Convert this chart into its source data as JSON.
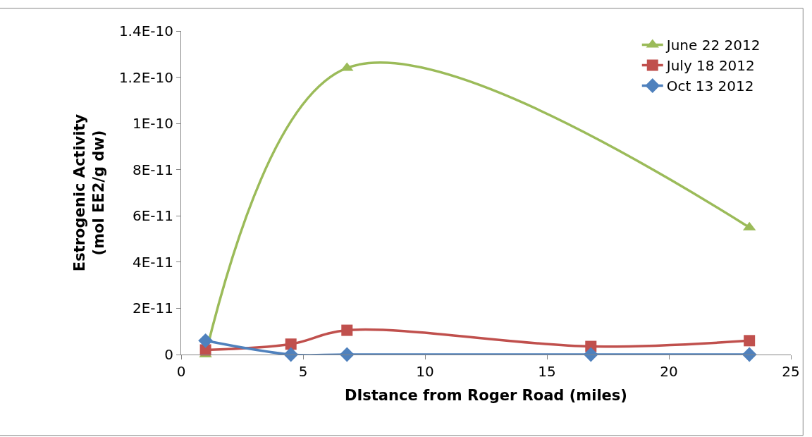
{
  "chart_data": {
    "type": "line",
    "xlabel": "DIstance from Roger Road (miles)",
    "ylabel": "Estrogenic Activity\n(mol EE2/g dw)",
    "xlim": [
      0,
      25
    ],
    "xticks": [
      0,
      5,
      10,
      15,
      20,
      25
    ],
    "ylim": [
      0,
      1.4e-10
    ],
    "yticks": [
      0,
      {
        "value": 2e-11,
        "label": "2E-11"
      },
      {
        "value": 4e-11,
        "label": "4E-11"
      },
      {
        "value": 6e-11,
        "label": "6E-11"
      },
      {
        "value": 8e-11,
        "label": "8E-11"
      },
      {
        "value": 1e-10,
        "label": "1E-10"
      },
      {
        "value": 1.2e-10,
        "label": "1.2E-10"
      },
      {
        "value": 1.4e-10,
        "label": "1.4E-10"
      }
    ],
    "legend": "top right",
    "series": [
      {
        "name": "June 22 2012",
        "color": "#9bbb59",
        "marker": "triangle",
        "x": [
          1,
          6.8,
          23.3
        ],
        "values": [
          0,
          1.24e-10,
          5.5e-11
        ]
      },
      {
        "name": "July 18 2012",
        "color": "#c0504d",
        "marker": "square",
        "x": [
          1,
          4.5,
          6.8,
          16.8,
          23.3
        ],
        "values": [
          2e-12,
          4.5e-12,
          1.05e-11,
          3.5e-12,
          6e-12
        ]
      },
      {
        "name": "Oct 13 2012",
        "color": "#4f81bd",
        "marker": "diamond",
        "x": [
          1,
          4.5,
          6.8,
          16.8,
          23.3
        ],
        "values": [
          6e-12,
          0,
          0,
          0,
          0
        ]
      }
    ]
  }
}
